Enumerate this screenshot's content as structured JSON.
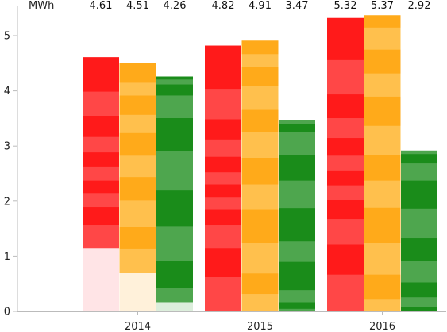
{
  "chart_data": {
    "type": "bar",
    "stacked": true,
    "unit_label": "MWh",
    "title": "",
    "xlabel": "",
    "ylabel": "",
    "ylim": [
      0,
      5.5
    ],
    "y_ticks": [
      0,
      1,
      2,
      3,
      4,
      5
    ],
    "grid": false,
    "legend": "none",
    "categories": [
      "2014",
      "2015",
      "2016"
    ],
    "series_colors": [
      "#ff1a1a",
      "#ffaa1a",
      "#1a8c1a"
    ],
    "bars": [
      {
        "category": "2014",
        "series_index": 0,
        "total": 4.61,
        "total_label": "4.61",
        "segments": [
          {
            "value": 1.15,
            "color": "#ffe4e6"
          },
          {
            "value": 0.42,
            "color": "#ff4747"
          },
          {
            "value": 0.33,
            "color": "#ff1a1a"
          },
          {
            "value": 0.24,
            "color": "#ff4747"
          },
          {
            "value": 0.24,
            "color": "#ff1a1a"
          },
          {
            "value": 0.24,
            "color": "#ff4747"
          },
          {
            "value": 0.27,
            "color": "#ff1a1a"
          },
          {
            "value": 0.28,
            "color": "#ff4747"
          },
          {
            "value": 0.37,
            "color": "#ff1a1a"
          },
          {
            "value": 0.45,
            "color": "#ff4747"
          },
          {
            "value": 0.62,
            "color": "#ff1a1a"
          }
        ]
      },
      {
        "category": "2014",
        "series_index": 1,
        "total": 4.51,
        "total_label": "4.51",
        "segments": [
          {
            "value": 0.7,
            "color": "#fff1da"
          },
          {
            "value": 0.44,
            "color": "#ffc04d"
          },
          {
            "value": 0.39,
            "color": "#ffaa1a"
          },
          {
            "value": 0.48,
            "color": "#ffc04d"
          },
          {
            "value": 0.42,
            "color": "#ffaa1a"
          },
          {
            "value": 0.4,
            "color": "#ffc04d"
          },
          {
            "value": 0.41,
            "color": "#ffaa1a"
          },
          {
            "value": 0.33,
            "color": "#ffc04d"
          },
          {
            "value": 0.35,
            "color": "#ffaa1a"
          },
          {
            "value": 0.23,
            "color": "#ffc04d"
          },
          {
            "value": 0.36,
            "color": "#ffaa1a"
          }
        ]
      },
      {
        "category": "2014",
        "series_index": 2,
        "total": 4.26,
        "total_label": "4.26",
        "segments": [
          {
            "value": 0.17,
            "color": "#dceedc"
          },
          {
            "value": 0.26,
            "color": "#4ea64e"
          },
          {
            "value": 0.48,
            "color": "#1a8c1a"
          },
          {
            "value": 0.64,
            "color": "#4ea64e"
          },
          {
            "value": 0.65,
            "color": "#1a8c1a"
          },
          {
            "value": 0.72,
            "color": "#4ea64e"
          },
          {
            "value": 0.59,
            "color": "#1a8c1a"
          },
          {
            "value": 0.41,
            "color": "#4ea64e"
          },
          {
            "value": 0.2,
            "color": "#1a8c1a"
          },
          {
            "value": 0.09,
            "color": "#4ea64e"
          },
          {
            "value": 0.05,
            "color": "#1a8c1a"
          }
        ]
      },
      {
        "category": "2015",
        "series_index": 0,
        "total": 4.82,
        "total_label": "4.82",
        "segments": [
          {
            "value": 0.63,
            "color": "#ff4747"
          },
          {
            "value": 0.52,
            "color": "#ff1a1a"
          },
          {
            "value": 0.42,
            "color": "#ff4747"
          },
          {
            "value": 0.28,
            "color": "#ff1a1a"
          },
          {
            "value": 0.22,
            "color": "#ff4747"
          },
          {
            "value": 0.24,
            "color": "#ff1a1a"
          },
          {
            "value": 0.22,
            "color": "#ff4747"
          },
          {
            "value": 0.28,
            "color": "#ff1a1a"
          },
          {
            "value": 0.3,
            "color": "#ff4747"
          },
          {
            "value": 0.38,
            "color": "#ff1a1a"
          },
          {
            "value": 0.55,
            "color": "#ff4747"
          },
          {
            "value": 0.78,
            "color": "#ff1a1a"
          }
        ]
      },
      {
        "category": "2015",
        "series_index": 1,
        "total": 4.91,
        "total_label": "4.91",
        "segments": [
          {
            "value": 0.32,
            "color": "#ffc04d"
          },
          {
            "value": 0.37,
            "color": "#ffaa1a"
          },
          {
            "value": 0.55,
            "color": "#ffc04d"
          },
          {
            "value": 0.61,
            "color": "#ffaa1a"
          },
          {
            "value": 0.46,
            "color": "#ffc04d"
          },
          {
            "value": 0.47,
            "color": "#ffaa1a"
          },
          {
            "value": 0.48,
            "color": "#ffc04d"
          },
          {
            "value": 0.4,
            "color": "#ffaa1a"
          },
          {
            "value": 0.43,
            "color": "#ffc04d"
          },
          {
            "value": 0.35,
            "color": "#ffaa1a"
          },
          {
            "value": 0.23,
            "color": "#ffc04d"
          },
          {
            "value": 0.24,
            "color": "#ffaa1a"
          }
        ]
      },
      {
        "category": "2015",
        "series_index": 2,
        "total": 3.47,
        "total_label": "3.47",
        "segments": [
          {
            "value": 0.05,
            "color": "#4ea64e"
          },
          {
            "value": 0.12,
            "color": "#1a8c1a"
          },
          {
            "value": 0.22,
            "color": "#4ea64e"
          },
          {
            "value": 0.51,
            "color": "#1a8c1a"
          },
          {
            "value": 0.38,
            "color": "#4ea64e"
          },
          {
            "value": 0.59,
            "color": "#1a8c1a"
          },
          {
            "value": 0.51,
            "color": "#4ea64e"
          },
          {
            "value": 0.47,
            "color": "#1a8c1a"
          },
          {
            "value": 0.41,
            "color": "#4ea64e"
          },
          {
            "value": 0.14,
            "color": "#1a8c1a"
          },
          {
            "value": 0.07,
            "color": "#4ea64e"
          }
        ]
      },
      {
        "category": "2016",
        "series_index": 0,
        "total": 5.32,
        "total_label": "5.32",
        "segments": [
          {
            "value": 0.67,
            "color": "#ff4747"
          },
          {
            "value": 0.55,
            "color": "#ff1a1a"
          },
          {
            "value": 0.45,
            "color": "#ff4747"
          },
          {
            "value": 0.36,
            "color": "#ff1a1a"
          },
          {
            "value": 0.25,
            "color": "#ff4747"
          },
          {
            "value": 0.27,
            "color": "#ff1a1a"
          },
          {
            "value": 0.28,
            "color": "#ff4747"
          },
          {
            "value": 0.32,
            "color": "#ff1a1a"
          },
          {
            "value": 0.36,
            "color": "#ff4747"
          },
          {
            "value": 0.43,
            "color": "#ff1a1a"
          },
          {
            "value": 0.62,
            "color": "#ff4747"
          },
          {
            "value": 0.76,
            "color": "#ff1a1a"
          }
        ]
      },
      {
        "category": "2016",
        "series_index": 1,
        "total": 5.37,
        "total_label": "5.37",
        "segments": [
          {
            "value": 0.23,
            "color": "#ffc04d"
          },
          {
            "value": 0.44,
            "color": "#ffaa1a"
          },
          {
            "value": 0.57,
            "color": "#ffc04d"
          },
          {
            "value": 0.65,
            "color": "#ffaa1a"
          },
          {
            "value": 0.49,
            "color": "#ffc04d"
          },
          {
            "value": 0.46,
            "color": "#ffaa1a"
          },
          {
            "value": 0.53,
            "color": "#ffc04d"
          },
          {
            "value": 0.53,
            "color": "#ffaa1a"
          },
          {
            "value": 0.42,
            "color": "#ffc04d"
          },
          {
            "value": 0.43,
            "color": "#ffaa1a"
          },
          {
            "value": 0.4,
            "color": "#ffc04d"
          },
          {
            "value": 0.22,
            "color": "#ffaa1a"
          }
        ]
      },
      {
        "category": "2016",
        "series_index": 2,
        "total": 2.92,
        "total_label": "2.92",
        "segments": [
          {
            "value": 0.09,
            "color": "#1a8c1a"
          },
          {
            "value": 0.17,
            "color": "#4ea64e"
          },
          {
            "value": 0.27,
            "color": "#1a8c1a"
          },
          {
            "value": 0.39,
            "color": "#4ea64e"
          },
          {
            "value": 0.42,
            "color": "#1a8c1a"
          },
          {
            "value": 0.52,
            "color": "#4ea64e"
          },
          {
            "value": 0.52,
            "color": "#1a8c1a"
          },
          {
            "value": 0.31,
            "color": "#4ea64e"
          },
          {
            "value": 0.17,
            "color": "#1a8c1a"
          },
          {
            "value": 0.06,
            "color": "#4ea64e"
          }
        ]
      }
    ]
  }
}
